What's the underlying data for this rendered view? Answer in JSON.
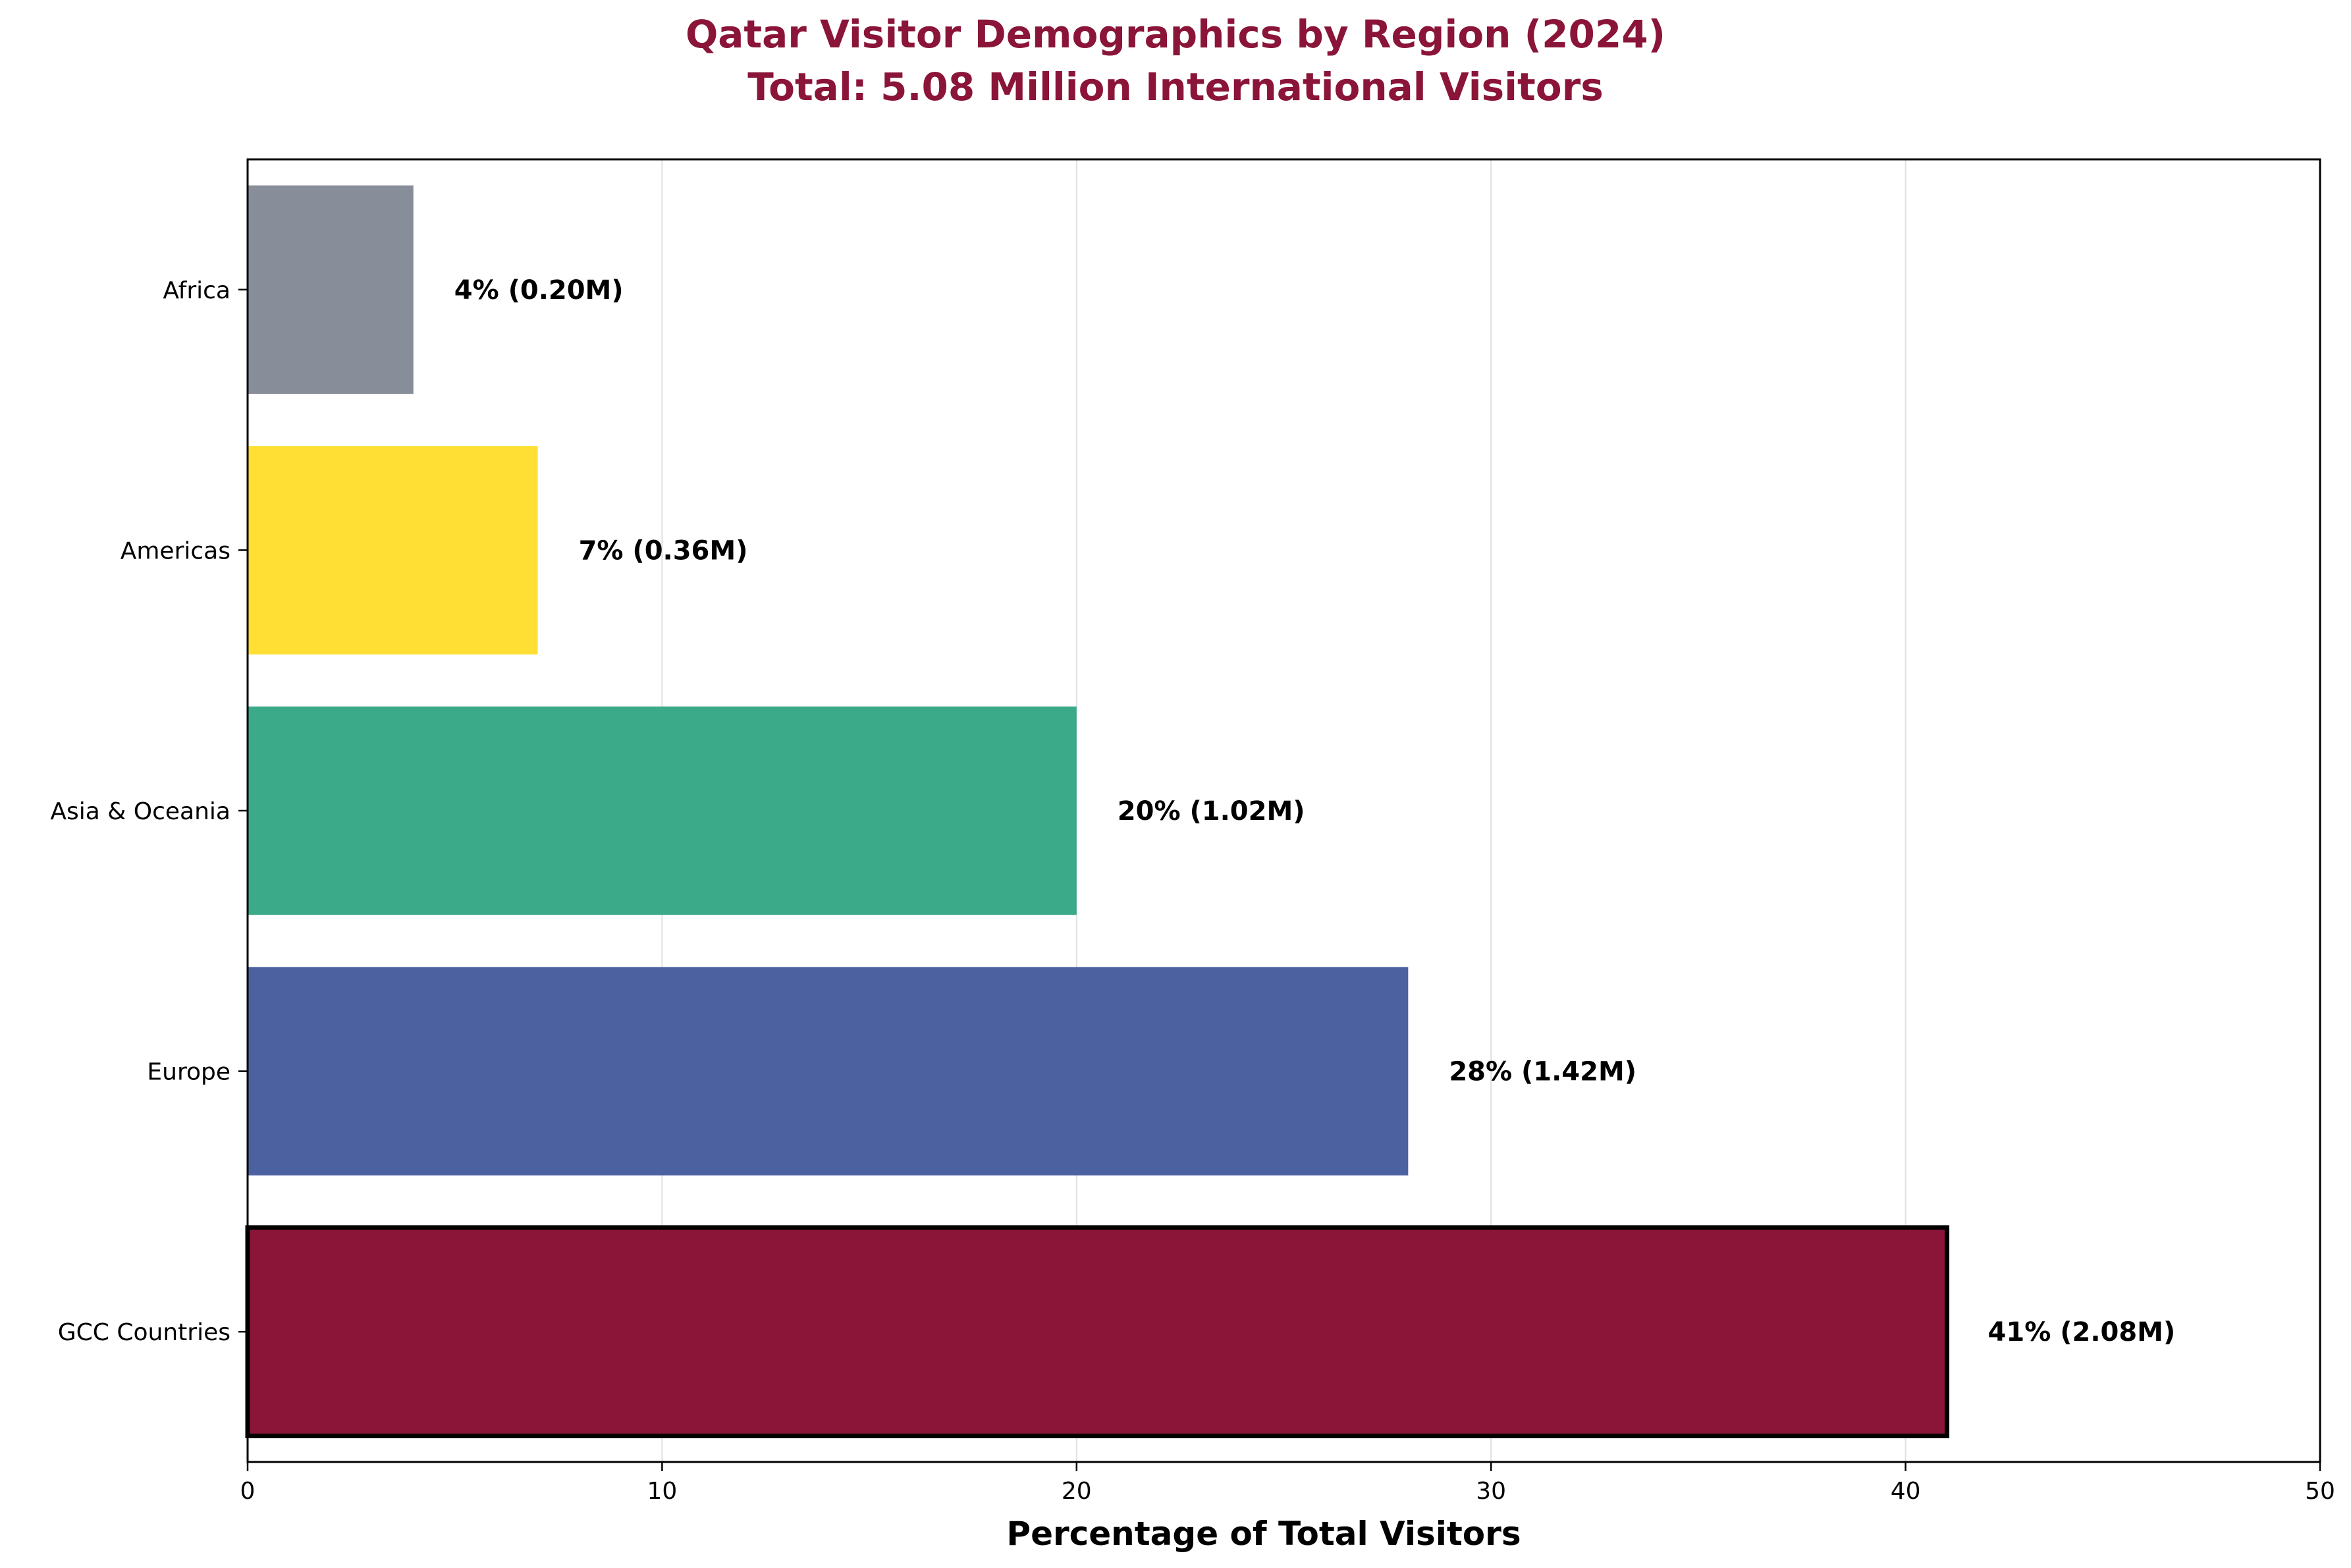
{
  "chart_data": {
    "type": "bar",
    "orientation": "horizontal",
    "title": "Qatar Visitor Demographics by Region (2024)",
    "subtitle": "Total: 5.08 Million International Visitors",
    "xlabel": "Percentage of Total Visitors",
    "ylabel": "",
    "xlim": [
      0,
      50
    ],
    "xticks": [
      0,
      10,
      20,
      30,
      40,
      50
    ],
    "grid": "vertical",
    "categories": [
      "GCC Countries",
      "Europe",
      "Asia & Oceania",
      "Americas",
      "Africa"
    ],
    "values": [
      41,
      28,
      20,
      7,
      4
    ],
    "visitors_millions": [
      2.08,
      1.42,
      1.02,
      0.36,
      0.2
    ],
    "data_labels": [
      "41% (2.08M)",
      "28% (1.42M)",
      "20% (1.02M)",
      "7% (0.36M)",
      "4% (0.20M)"
    ],
    "colors": [
      "#8a1538",
      "#4c62a0",
      "#3aaa88",
      "#ffdf33",
      "#888e99"
    ],
    "highlighted": "GCC Countries"
  },
  "colors": {
    "title": "#8a1538",
    "grid": "#e0e0e0",
    "axis": "#000000"
  }
}
